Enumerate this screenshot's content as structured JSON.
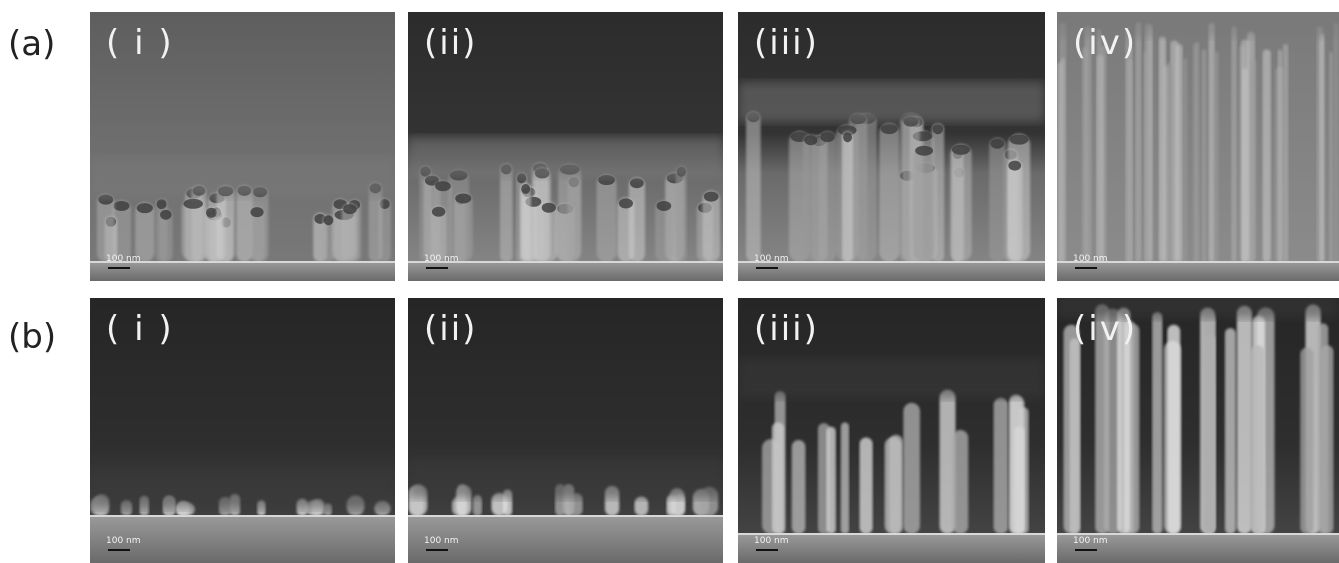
{
  "rows": [
    {
      "label": "(a)",
      "panels": [
        {
          "label": "( i )",
          "scale": "100 nm"
        },
        {
          "label": "(ii)",
          "scale": "100 nm"
        },
        {
          "label": "(iii)",
          "scale": "100 nm"
        },
        {
          "label": "(iv)",
          "scale": "100 nm"
        }
      ]
    },
    {
      "label": "(b)",
      "panels": [
        {
          "label": "( i )",
          "scale": "100 nm"
        },
        {
          "label": "(ii)",
          "scale": "100 nm"
        },
        {
          "label": "(iii)",
          "scale": "100 nm"
        },
        {
          "label": "(iv)",
          "scale": "100 nm"
        }
      ]
    }
  ]
}
